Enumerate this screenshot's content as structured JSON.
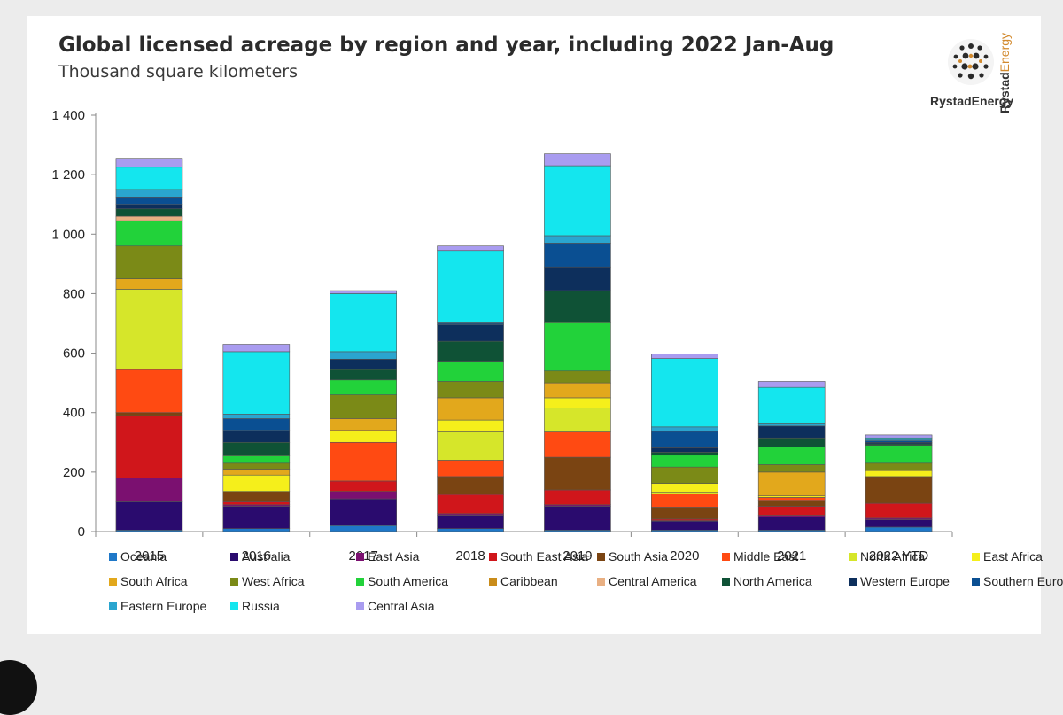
{
  "chart_data": {
    "type": "bar",
    "stacked": true,
    "title": "Global licensed acreage by region and year, including 2022 Jan-Aug",
    "subtitle": "Thousand square kilometers",
    "categories": [
      "2015",
      "2016",
      "2017",
      "2018",
      "2019",
      "2020",
      "2021",
      "2022 YTD"
    ],
    "ylim": [
      0,
      1400
    ],
    "yticks": [
      0,
      200,
      400,
      600,
      800,
      1000,
      1200,
      1400
    ],
    "ytick_labels": [
      "0",
      "200",
      "400",
      "600",
      "800",
      "1 000",
      "1 200",
      "1 400"
    ],
    "grid": false,
    "legend_position": "bottom",
    "series": [
      {
        "name": "Oceania",
        "color": "#1f78c8",
        "values": [
          5,
          10,
          20,
          10,
          5,
          5,
          5,
          15
        ]
      },
      {
        "name": "Australia",
        "color": "#2a0b6e",
        "values": [
          95,
          75,
          90,
          45,
          80,
          30,
          45,
          25
        ]
      },
      {
        "name": "East Asia",
        "color": "#7b1070",
        "values": [
          80,
          5,
          25,
          5,
          5,
          2,
          5,
          5
        ]
      },
      {
        "name": "South East Asia",
        "color": "#d0161b",
        "values": [
          210,
          10,
          35,
          65,
          50,
          5,
          30,
          50
        ]
      },
      {
        "name": "South Asia",
        "color": "#7a4412",
        "values": [
          10,
          35,
          0,
          60,
          110,
          40,
          20,
          90
        ]
      },
      {
        "name": "Middle East",
        "color": "#ff4a12",
        "values": [
          145,
          0,
          130,
          55,
          85,
          45,
          10,
          0
        ]
      },
      {
        "name": "North Africa",
        "color": "#d6e62a",
        "values": [
          270,
          0,
          0,
          95,
          80,
          5,
          0,
          0
        ]
      },
      {
        "name": "East Africa",
        "color": "#f5ef1b",
        "values": [
          0,
          55,
          40,
          40,
          35,
          30,
          5,
          20
        ]
      },
      {
        "name": "South Africa",
        "color": "#e2a81c",
        "values": [
          35,
          20,
          40,
          75,
          50,
          0,
          80,
          0
        ]
      },
      {
        "name": "West Africa",
        "color": "#7b8a17",
        "values": [
          110,
          20,
          80,
          55,
          40,
          55,
          25,
          25
        ]
      },
      {
        "name": "South America",
        "color": "#22d23a",
        "values": [
          85,
          25,
          50,
          65,
          165,
          40,
          60,
          60
        ]
      },
      {
        "name": "Caribbean",
        "color": "#c98c1a",
        "values": [
          0,
          0,
          0,
          0,
          0,
          0,
          0,
          0
        ]
      },
      {
        "name": "Central America",
        "color": "#e9b083",
        "values": [
          15,
          0,
          0,
          0,
          0,
          0,
          0,
          0
        ]
      },
      {
        "name": "North America",
        "color": "#0f5236",
        "values": [
          25,
          45,
          35,
          70,
          105,
          10,
          30,
          5
        ]
      },
      {
        "name": "Western Europe",
        "color": "#0d2f5c",
        "values": [
          15,
          40,
          35,
          55,
          80,
          15,
          40,
          5
        ]
      },
      {
        "name": "Southern Europe",
        "color": "#0a4f92",
        "values": [
          25,
          40,
          0,
          5,
          80,
          55,
          0,
          5
        ]
      },
      {
        "name": "Eastern Europe",
        "color": "#2aa5cf",
        "values": [
          25,
          15,
          25,
          5,
          25,
          15,
          10,
          5
        ]
      },
      {
        "name": "Russia",
        "color": "#14e6ee",
        "values": [
          75,
          210,
          195,
          240,
          235,
          230,
          120,
          5
        ]
      },
      {
        "name": "Central Asia",
        "color": "#a99cf0",
        "values": [
          30,
          25,
          10,
          15,
          40,
          15,
          20,
          10
        ]
      }
    ]
  },
  "logo": {
    "name": "RystadEnergy",
    "vertical_a": "Rystad",
    "vertical_b": "Energy"
  }
}
